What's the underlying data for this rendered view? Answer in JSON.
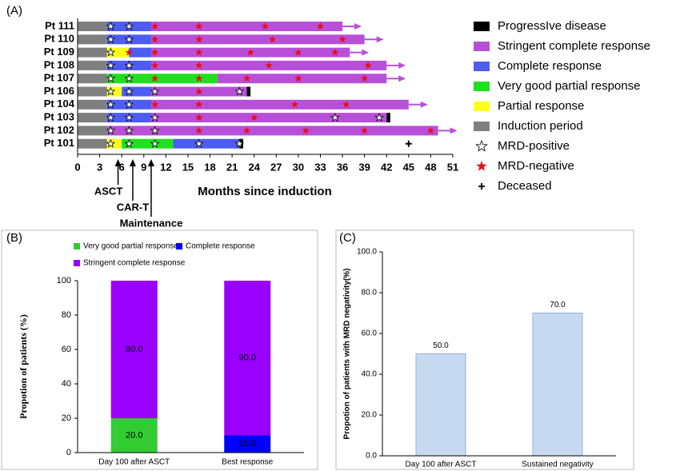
{
  "chart_data": [
    {
      "type": "swimmer",
      "panel_label": "(A)",
      "x_label": "Months since induction",
      "xlim": [
        0,
        51
      ],
      "xticks": [
        0,
        3,
        6,
        9,
        12,
        15,
        18,
        21,
        24,
        27,
        30,
        33,
        36,
        39,
        42,
        45,
        48,
        51
      ],
      "legend": {
        "progressive": "ProgressIve disease",
        "stringent_complete": "Stringent complete response",
        "complete": "Complete response",
        "very_good_partial": "Very good partial response",
        "partial": "Partial response",
        "induction": "Induction period",
        "mrd_positive": "MRD-positive",
        "mrd_negative": "MRD-negative",
        "deceased": "Deceased"
      },
      "colors": {
        "progressive": "#000000",
        "stringent_complete": "#b84fd8",
        "complete": "#4d5cf2",
        "very_good_partial": "#1fe01f",
        "partial": "#ffff1a",
        "induction": "#7f7f7f",
        "mrd_positive": "#ffffff",
        "mrd_negative": "#e81010",
        "deceased": "#000000"
      },
      "annotations": [
        {
          "text": "ASCT",
          "x": 5.5
        },
        {
          "text": "CAR-T",
          "x": 7.5
        },
        {
          "text": "Maintenance",
          "x": 10
        }
      ],
      "patients": [
        {
          "name": "Pt 111",
          "induction": [
            0,
            4
          ],
          "complete": [
            4,
            10
          ],
          "stringent_complete": [
            10,
            36
          ],
          "mrd_positive": [
            4.5,
            7
          ],
          "mrd_negative": [
            10.5,
            16.5,
            25.5,
            33
          ],
          "ongoing": true
        },
        {
          "name": "Pt 110",
          "induction": [
            0,
            4
          ],
          "complete": [
            4,
            10
          ],
          "stringent_complete": [
            10,
            39
          ],
          "mrd_positive": [
            4.5,
            7
          ],
          "mrd_negative": [
            10.5,
            16.5,
            26.5,
            36
          ],
          "ongoing": true
        },
        {
          "name": "Pt 109",
          "induction": [
            0,
            4
          ],
          "partial": [
            4,
            7
          ],
          "complete": [
            7,
            10
          ],
          "stringent_complete": [
            10,
            37
          ],
          "mrd_positive": [
            4.5
          ],
          "mrd_negative": [
            7,
            10.5,
            16.5,
            23.5,
            30,
            35
          ],
          "ongoing": true
        },
        {
          "name": "Pt 108",
          "induction": [
            0,
            4
          ],
          "complete": [
            4,
            10
          ],
          "stringent_complete": [
            10,
            42
          ],
          "mrd_positive": [
            4.5,
            7
          ],
          "mrd_negative": [
            10.5,
            16.5,
            26,
            39.5
          ],
          "ongoing": true
        },
        {
          "name": "Pt 107",
          "induction": [
            0,
            4
          ],
          "very_good_partial": [
            4,
            19
          ],
          "stringent_complete": [
            19,
            42
          ],
          "mrd_positive": [
            4.5,
            7
          ],
          "mrd_negative": [
            10.5,
            16.5,
            23,
            30,
            39
          ],
          "ongoing": true
        },
        {
          "name": "Pt 106",
          "induction": [
            0,
            4
          ],
          "partial": [
            4,
            6
          ],
          "complete": [
            6,
            10
          ],
          "stringent_complete": [
            10,
            23
          ],
          "progressive": [
            23,
            23.5
          ],
          "mrd_positive": [
            4.5,
            7,
            10.5,
            22
          ],
          "mrd_negative": [
            16.5
          ],
          "ongoing": false
        },
        {
          "name": "Pt 104",
          "induction": [
            0,
            4
          ],
          "complete": [
            4,
            10
          ],
          "stringent_complete": [
            10,
            45
          ],
          "mrd_positive": [
            4.5,
            7
          ],
          "mrd_negative": [
            10.5,
            16.5,
            29.5,
            36.5
          ],
          "ongoing": true
        },
        {
          "name": "Pt 103",
          "induction": [
            0,
            4
          ],
          "complete": [
            4,
            10
          ],
          "stringent_complete": [
            10,
            42
          ],
          "progressive": [
            42,
            42.5
          ],
          "mrd_positive": [
            4.5,
            7,
            10.5,
            35,
            41
          ],
          "mrd_negative": [
            16.5,
            24
          ],
          "ongoing": false
        },
        {
          "name": "Pt 102",
          "induction": [
            0,
            4
          ],
          "stringent_complete": [
            4,
            49
          ],
          "mrd_positive": [
            4.5,
            7,
            10.5
          ],
          "mrd_negative": [
            16.5,
            23,
            31,
            39,
            48
          ],
          "ongoing": true
        },
        {
          "name": "Pt 101",
          "induction": [
            0,
            4
          ],
          "partial": [
            4,
            6
          ],
          "very_good_partial": [
            6,
            13
          ],
          "complete": [
            13,
            22
          ],
          "progressive": [
            22,
            22.5
          ],
          "mrd_positive": [
            4.5,
            7,
            10.5,
            16.5,
            22
          ],
          "mrd_negative": [],
          "deceased": 45,
          "ongoing": false
        }
      ]
    },
    {
      "type": "stacked_bar",
      "panel_label": "(B)",
      "y_label": "Propotion of patients (%)",
      "categories": [
        "Day 100 after ASCT",
        "Best response"
      ],
      "series": [
        {
          "name": "Very good partial response",
          "color": "#33cc33",
          "values": [
            20,
            0
          ],
          "value_labels": [
            "20.0",
            null
          ]
        },
        {
          "name": "Complete response",
          "color": "#0000ff",
          "values": [
            0,
            10
          ],
          "value_labels": [
            null,
            "10.0"
          ]
        },
        {
          "name": "Stringent complete response",
          "color": "#9900ff",
          "values": [
            80,
            90
          ],
          "value_labels": [
            "80.0",
            "90.0"
          ]
        }
      ],
      "ylim": [
        0,
        100
      ],
      "yticks": [
        0,
        20,
        40,
        60,
        80,
        100
      ]
    },
    {
      "type": "bar",
      "panel_label": "(C)",
      "y_label": "Propotion of patients with MRD negativity(%)",
      "categories": [
        "Day 100 after ASCT",
        "Sustained negativity"
      ],
      "values": [
        50,
        70
      ],
      "value_labels": [
        "50.0",
        "70.0"
      ],
      "color": "#c6d9f0",
      "ylim": [
        0,
        100
      ],
      "yticks": [
        {
          "value": 0,
          "label": "0.0"
        },
        {
          "value": 20,
          "label": "20.0"
        },
        {
          "value": 40,
          "label": "40.0"
        },
        {
          "value": 60,
          "label": "60.0"
        },
        {
          "value": 80,
          "label": "80.0"
        },
        {
          "value": 100,
          "label": "100.0"
        }
      ]
    }
  ]
}
